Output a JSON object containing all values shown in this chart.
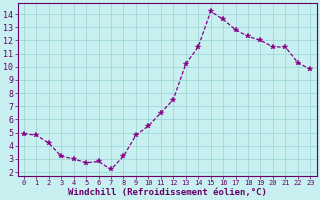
{
  "x": [
    0,
    1,
    2,
    3,
    4,
    5,
    6,
    7,
    8,
    9,
    10,
    11,
    12,
    13,
    14,
    15,
    16,
    17,
    18,
    19,
    20,
    21,
    22,
    23
  ],
  "y": [
    4.9,
    4.8,
    4.2,
    3.2,
    3.0,
    2.7,
    2.8,
    2.2,
    3.2,
    4.8,
    5.5,
    6.5,
    7.5,
    10.2,
    11.5,
    14.2,
    13.6,
    12.8,
    12.3,
    12.0,
    11.5,
    11.5,
    10.3,
    9.8
  ],
  "line_color": "#880088",
  "marker": "*",
  "marker_size": 4,
  "bg_color": "#c8f0f0",
  "grid_color": "#a0d8d8",
  "xlabel": "Windchill (Refroidissement éolien,°C)",
  "ytick_labels": [
    "2",
    "3",
    "4",
    "5",
    "6",
    "7",
    "8",
    "9",
    "10",
    "11",
    "12",
    "13",
    "14"
  ],
  "ytick_values": [
    2,
    3,
    4,
    5,
    6,
    7,
    8,
    9,
    10,
    11,
    12,
    13,
    14
  ],
  "ylim": [
    1.7,
    14.8
  ],
  "xlim": [
    -0.5,
    23.5
  ],
  "axis_label_color": "#660066",
  "tick_label_color": "#660066",
  "spine_color": "#660066",
  "xlabel_fontsize": 6.5,
  "tick_fontsize": 6.0,
  "figsize": [
    3.2,
    2.0
  ],
  "dpi": 100
}
